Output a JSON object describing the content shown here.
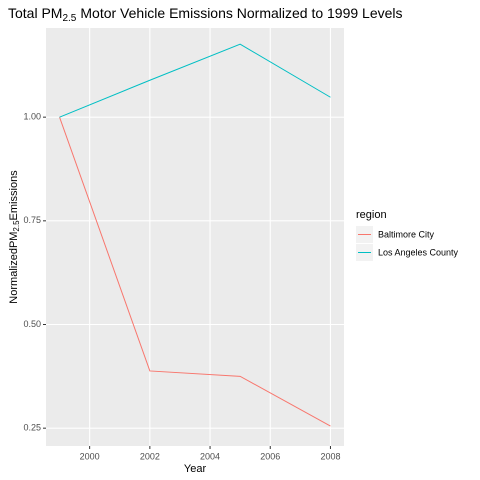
{
  "chart_data": {
    "type": "line",
    "title": [
      "Total PM",
      "2.5",
      "Motor Vehicle Emissions Normalized to 1999 Levels"
    ],
    "x_label": "Year",
    "y_label": [
      "NormalizedPM",
      "2.5",
      "Emissions"
    ],
    "legend_title": "region",
    "x": [
      1999,
      2002,
      2005,
      2008
    ],
    "series": [
      {
        "name": "Baltimore City",
        "color": "#F8766D",
        "values": [
          1.0,
          0.388,
          0.375,
          0.255
        ]
      },
      {
        "name": "Los Angeles County",
        "color": "#00BFC4",
        "values": [
          1.0,
          1.089,
          1.176,
          1.048
        ]
      }
    ],
    "xlim": [
      1998.55,
      2008.45
    ],
    "xticks": [
      2000,
      2002,
      2004,
      2006,
      2008
    ],
    "ylim": [
      0.207,
      1.215
    ],
    "yticks": [
      {
        "value": 0.25,
        "label": "0.25"
      },
      {
        "value": 0.5,
        "label": "0.50"
      },
      {
        "value": 0.75,
        "label": "0.75"
      },
      {
        "value": 1.0,
        "label": "1.00"
      }
    ],
    "grid": true
  }
}
